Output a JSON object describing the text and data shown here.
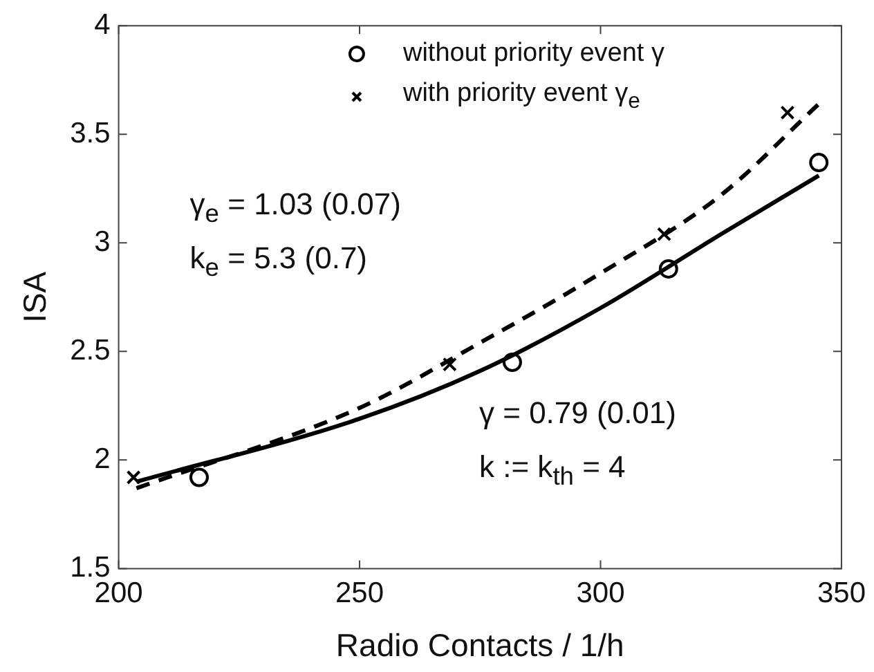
{
  "chart_data": {
    "type": "scatter",
    "xlabel": "Radio Contacts / 1/h",
    "ylabel": "ISA",
    "xlim": [
      200,
      350
    ],
    "ylim": [
      1.5,
      4
    ],
    "xticks": [
      200,
      250,
      300,
      350
    ],
    "yticks": [
      1.5,
      2,
      2.5,
      3,
      3.5,
      4
    ],
    "grid": false,
    "legend": "top",
    "annotations": [
      "γ$_{e}$ = 1.03 (0.07)",
      "k$_{e}$ = 5.3 (0.7)",
      "γ = 0.79 (0.01)",
      "k := k$_{th}$ = 4"
    ],
    "series": [
      {
        "name": "without priority event γ",
        "marker": "circle",
        "color": "#000000",
        "x": [
          216.7,
          281.7,
          314.1,
          345.3
        ],
        "values": [
          1.92,
          2.45,
          2.88,
          3.37
        ]
      },
      {
        "name": "with priority event γ$_{e}$",
        "marker": "cross",
        "color": "#000000",
        "x": [
          203.1,
          268.7,
          313.2,
          338.8
        ],
        "values": [
          1.92,
          2.44,
          3.04,
          3.6
        ]
      },
      {
        "type": "line",
        "marker": "none",
        "line_style": "solid",
        "color": "#000000",
        "x": [
          203.7,
          250,
          275,
          300,
          325,
          345.3
        ],
        "values": [
          1.9,
          2.19,
          2.41,
          2.7,
          3.04,
          3.31
        ]
      },
      {
        "type": "line",
        "marker": "none",
        "line_style": "dashed",
        "color": "#000000",
        "x": [
          203.7,
          250,
          275,
          300,
          325,
          345.3
        ],
        "values": [
          1.87,
          2.24,
          2.54,
          2.86,
          3.22,
          3.64
        ]
      }
    ]
  }
}
